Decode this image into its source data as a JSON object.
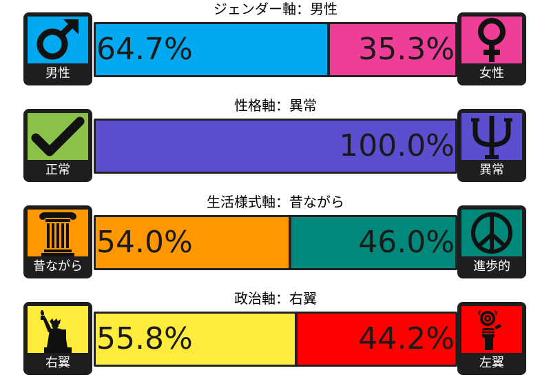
{
  "axes": [
    {
      "title": "ジェンダー軸：男性",
      "left": {
        "label": "男性",
        "icon": "male-symbol-icon",
        "color": "#00A9F0",
        "percent_text": "64.7%",
        "value": 64.7
      },
      "right": {
        "label": "女性",
        "icon": "female-symbol-icon",
        "color": "#EE3E97",
        "percent_text": "35.3%",
        "value": 35.3
      }
    },
    {
      "title": "性格軸：異常",
      "left": {
        "label": "正常",
        "icon": "checkmark-icon",
        "color": "#8BC34A",
        "percent_text": "",
        "value": 0.0
      },
      "right": {
        "label": "異常",
        "icon": "psi-icon",
        "color": "#5B4FCF",
        "percent_text": "100.0%",
        "value": 100.0
      }
    },
    {
      "title": "生活様式軸：昔ながら",
      "left": {
        "label": "昔ながら",
        "icon": "column-pillar-icon",
        "color": "#FF9800",
        "percent_text": "54.0%",
        "value": 54.0
      },
      "right": {
        "label": "進歩的",
        "icon": "peace-sign-icon",
        "color": "#00897B",
        "percent_text": "46.0%",
        "value": 46.0
      }
    },
    {
      "title": "政治軸：右翼",
      "left": {
        "label": "右翼",
        "icon": "statue-of-liberty-icon",
        "color": "#FFEB3B",
        "percent_text": "55.8%",
        "value": 55.8
      },
      "right": {
        "label": "左翼",
        "icon": "fist-rose-icon",
        "color": "#FF0000",
        "percent_text": "44.2%",
        "value": 44.2
      }
    }
  ]
}
